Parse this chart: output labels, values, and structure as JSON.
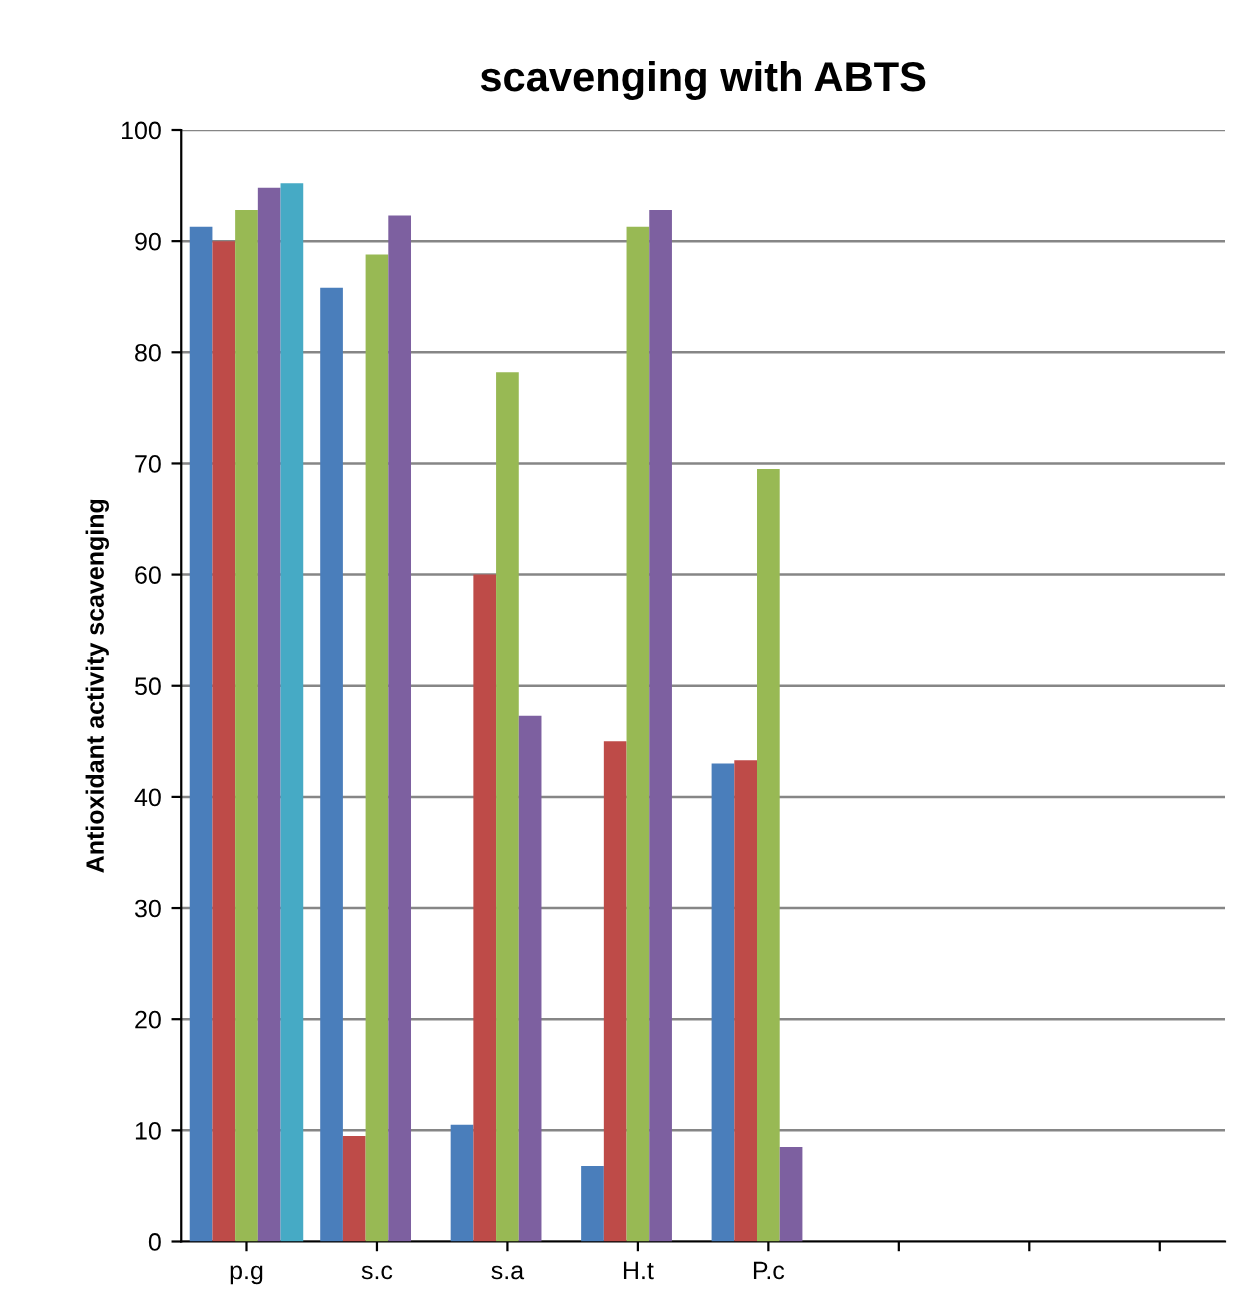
{
  "chart_data": {
    "type": "bar",
    "title": "scavenging with ABTS",
    "ylabel": "Antioxidant activity scavenging",
    "categories": [
      "p.g",
      "s.c",
      "s.a",
      "H.t",
      "P.c",
      null,
      null,
      null
    ],
    "series": [
      {
        "color": "#4a7ebb",
        "values": [
          91.3,
          85.8,
          10.5,
          6.8,
          43,
          null,
          null,
          null
        ]
      },
      {
        "color": "#be4b48",
        "values": [
          90,
          9.5,
          60,
          45,
          43.3,
          null,
          null,
          null
        ]
      },
      {
        "color": "#98b954",
        "values": [
          92.8,
          88.8,
          78.2,
          91.3,
          69.5,
          null,
          null,
          null
        ]
      },
      {
        "color": "#7d60a0",
        "values": [
          94.8,
          92.3,
          47.3,
          92.8,
          8.5,
          null,
          null,
          null
        ]
      },
      {
        "color": "#46aac5",
        "values": [
          95.2,
          null,
          null,
          null,
          null,
          null,
          null,
          null
        ]
      }
    ],
    "ylim": [
      0,
      100
    ],
    "yticks": [
      0,
      10,
      20,
      30,
      40,
      50,
      60,
      70,
      80,
      90,
      100
    ],
    "grid": "y",
    "legend": false
  }
}
